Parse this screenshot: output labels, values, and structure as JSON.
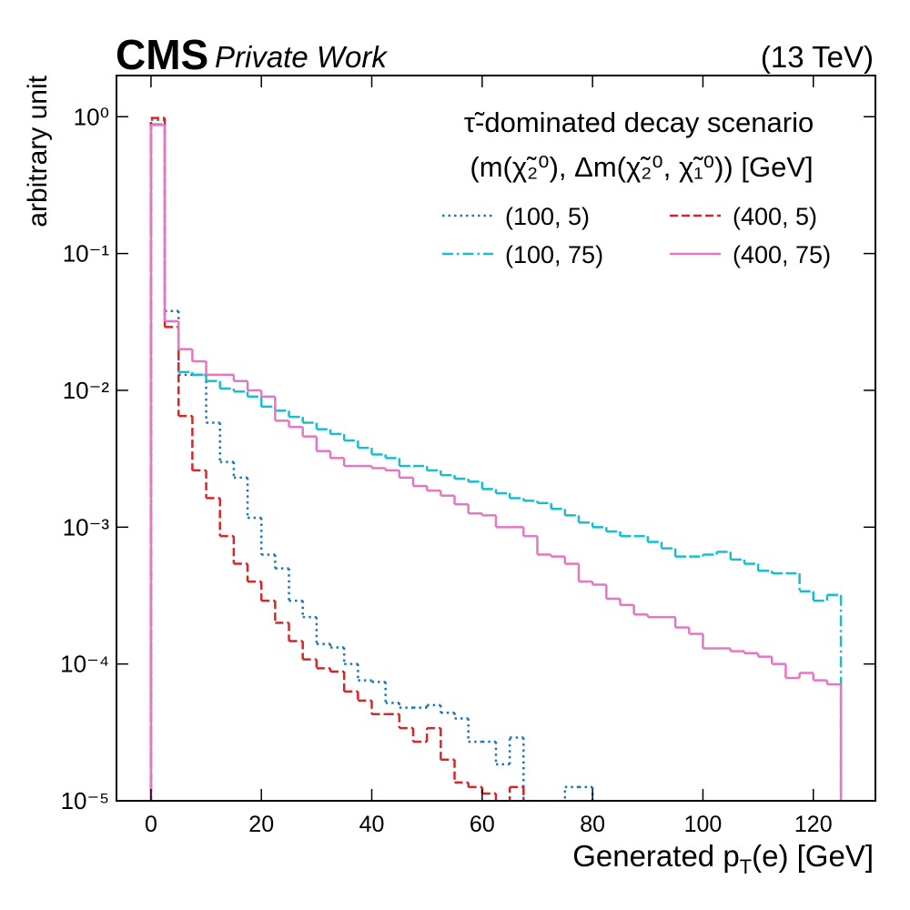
{
  "chart_data": {
    "type": "step-histogram",
    "experiment": "CMS",
    "subtitle": "Private Work",
    "energy": "(13 TeV)",
    "ylabel": "arbitrary unit",
    "xlabel": [
      "Generated p",
      "T",
      "(e) [GeV]"
    ],
    "legend_title": [
      "τ̃-dominated decay scenario",
      "(m(χ̃₂⁰), Δm(χ̃₂⁰, χ̃₁⁰)) [GeV]"
    ],
    "legend_loc": "upper right",
    "legend_columns": 2,
    "log_y": true,
    "xlim": [
      -6.25,
      131.25
    ],
    "ylim": [
      1e-05,
      2
    ],
    "xticks": [
      0,
      20,
      40,
      60,
      80,
      100,
      120
    ],
    "yticks": [
      {
        "value": 1e-05,
        "label": "10⁻⁵"
      },
      {
        "value": 0.0001,
        "label": "10⁻⁴"
      },
      {
        "value": 0.001,
        "label": "10⁻³"
      },
      {
        "value": 0.01,
        "label": "10⁻²"
      },
      {
        "value": 0.1,
        "label": "10⁻¹"
      },
      {
        "value": 1,
        "label": "10⁰"
      }
    ],
    "bins": [
      0,
      2.5,
      5,
      7.5,
      10,
      12.5,
      15,
      17.5,
      20,
      22.5,
      25,
      27.5,
      30,
      32.5,
      35,
      37.5,
      40,
      42.5,
      45,
      47.5,
      50,
      52.5,
      55,
      57.5,
      60,
      62.5,
      65,
      67.5,
      70,
      72.5,
      75,
      77.5,
      80,
      82.5,
      85,
      87.5,
      90,
      92.5,
      95,
      97.5,
      100,
      102.5,
      105,
      107.5,
      110,
      112.5,
      115,
      117.5,
      120,
      122.5,
      125
    ],
    "series": [
      {
        "name": "(100, 5)",
        "color": "#1f77b4",
        "linestyle": "dotted",
        "values": [
          0.95,
          0.038,
          0.013,
          0.013,
          0.0058,
          0.003,
          0.0023,
          0.00117,
          0.00063,
          0.0005,
          0.00029,
          0.00022,
          0.00014,
          0.000132,
          0.0001,
          7.6e-05,
          7.4e-05,
          5.2e-05,
          4.8e-05,
          4.8e-05,
          5e-05,
          4.4e-05,
          4e-05,
          2.7e-05,
          2.7e-05,
          1.85e-05,
          2.9e-05,
          0,
          0,
          0,
          1.26e-05,
          1.26e-05,
          0,
          0,
          0,
          0,
          0,
          0,
          0,
          0,
          0,
          0,
          0,
          0,
          0,
          0,
          0,
          0,
          0,
          0
        ]
      },
      {
        "name": "(100, 75)",
        "color": "#17becf",
        "linestyle": "dashdot",
        "values": [
          0.88,
          0.032,
          0.0136,
          0.013,
          0.0117,
          0.0103,
          0.0098,
          0.009,
          0.0076,
          0.0071,
          0.0064,
          0.0058,
          0.0052,
          0.0048,
          0.0043,
          0.0038,
          0.0034,
          0.0032,
          0.0028,
          0.0028,
          0.0026,
          0.0024,
          0.00226,
          0.00215,
          0.0019,
          0.00177,
          0.00163,
          0.00156,
          0.0015,
          0.00136,
          0.00122,
          0.00108,
          0.001,
          0.00093,
          0.00086,
          0.00086,
          0.00078,
          0.0007,
          0.00061,
          0.00061,
          0.00063,
          0.00066,
          0.00058,
          0.00054,
          0.00048,
          0.00046,
          0.00046,
          0.00034,
          0.00029,
          0.00032
        ]
      },
      {
        "name": "(400, 5)",
        "color": "#d62728",
        "linestyle": "dashed",
        "values": [
          0.98,
          0.029,
          0.0065,
          0.0026,
          0.00163,
          0.00086,
          0.00054,
          0.0004,
          0.00029,
          0.0002,
          0.000147,
          0.000108,
          9.3e-05,
          8.8e-05,
          6.3e-05,
          5.4e-05,
          4.3e-05,
          4.3e-05,
          3.4e-05,
          2.7e-05,
          3.4e-05,
          2e-05,
          1.36e-05,
          1.26e-05,
          1.13e-05,
          0,
          1.26e-05,
          0,
          0,
          0,
          0,
          0,
          0,
          0,
          0,
          0,
          0,
          0,
          0,
          0,
          0,
          0,
          0,
          0,
          0,
          0,
          0,
          0,
          0,
          0
        ]
      },
      {
        "name": "(400, 75)",
        "color": "#e377c2",
        "linestyle": "solid",
        "values": [
          0.87,
          0.032,
          0.02,
          0.0163,
          0.013,
          0.013,
          0.0117,
          0.01,
          0.009,
          0.006,
          0.0054,
          0.0046,
          0.0036,
          0.0032,
          0.0028,
          0.0028,
          0.0027,
          0.0026,
          0.0023,
          0.002,
          0.00185,
          0.0017,
          0.00147,
          0.00126,
          0.00122,
          0.001,
          0.001,
          0.00086,
          0.00063,
          0.00061,
          0.00054,
          0.0004,
          0.00038,
          0.0003,
          0.00027,
          0.00023,
          0.00022,
          0.00022,
          0.000185,
          0.000166,
          0.00013,
          0.00013,
          0.000124,
          0.00012,
          0.000113,
          0.0001,
          7.9e-05,
          8.6e-05,
          7.6e-05,
          7.1e-05
        ]
      }
    ]
  }
}
